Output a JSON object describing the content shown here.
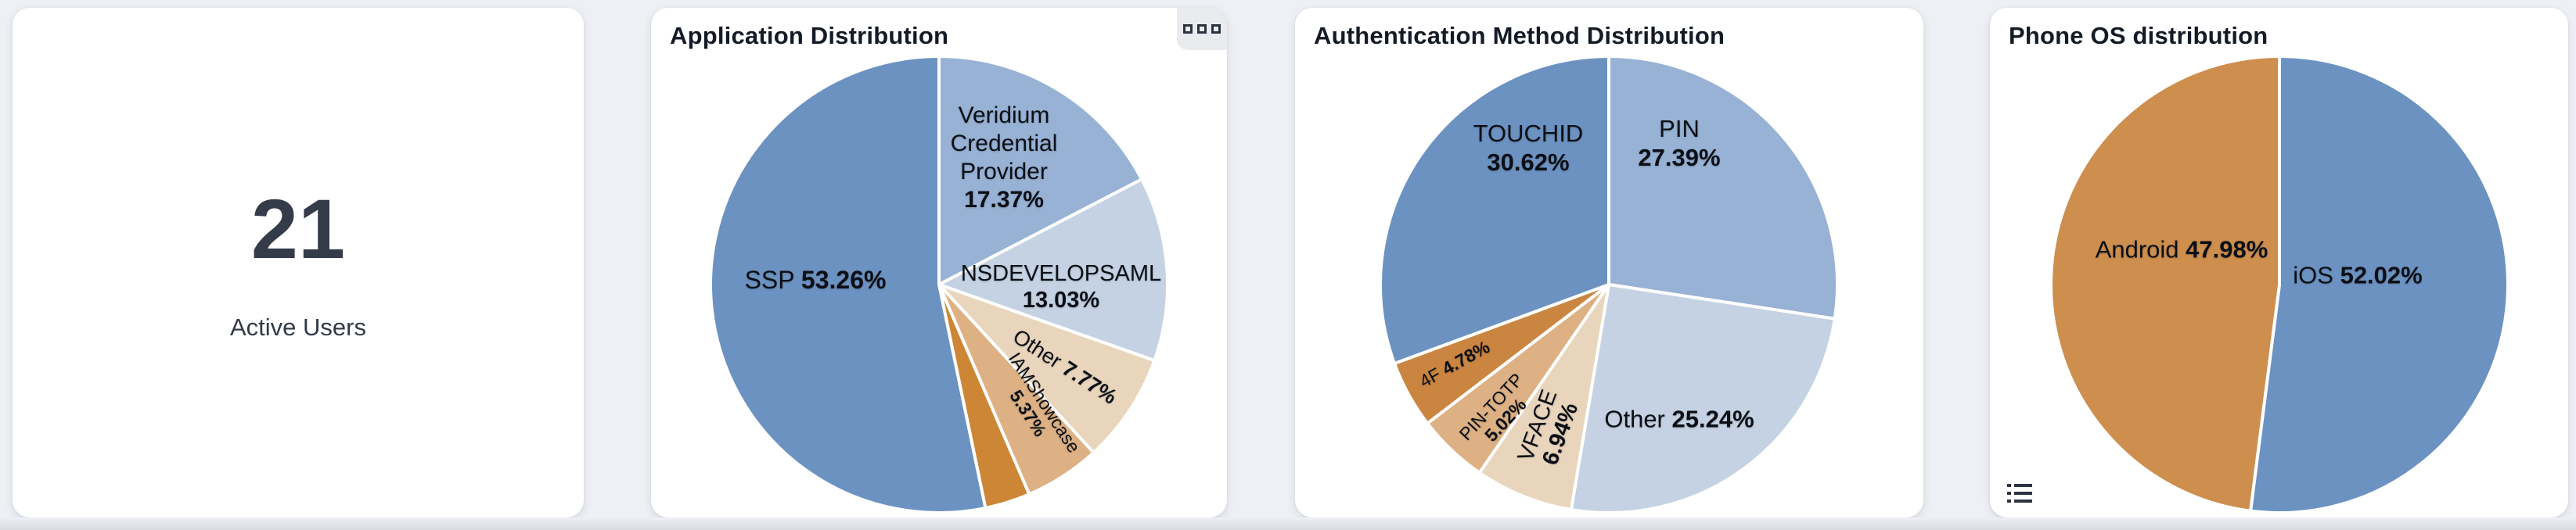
{
  "page": {
    "background_color": "#eef0f5"
  },
  "cards": {
    "active_users": {
      "value": "21",
      "label": "Active Users"
    },
    "application": {
      "title": "Application Distribution",
      "menu_icon": "panel-squares-icon"
    },
    "authentication": {
      "title": "Authentication Method Distribution"
    },
    "phone_os": {
      "title": "Phone OS distribution",
      "list_icon": "legend-list-icon"
    }
  },
  "chart_data": [
    {
      "type": "pie",
      "title": "Application Distribution",
      "direction": "clockwise",
      "start_angle_deg": 0,
      "legend": false,
      "labels_inside": true,
      "center": [
        368,
        354
      ],
      "radius": 292,
      "stroke": {
        "color": "#ffffff",
        "width": 4
      },
      "slices": [
        {
          "name": "Veridium Credential Provider",
          "value": 17.37,
          "color": "#97b2d4",
          "label_lines": [
            "Veridium",
            "Credential",
            "Provider",
            "**17.37%**"
          ],
          "label_offset": [
            83,
            -162
          ],
          "rotation": 0,
          "font_size": 30,
          "line_height": 36
        },
        {
          "name": "NSDEVELOPSAML",
          "value": 13.03,
          "color": "#c4d2e3",
          "label_lines": [
            "NSDEVELOPSAML",
            "**13.03%**"
          ],
          "label_offset": [
            156,
            3
          ],
          "rotation": 0,
          "font_size": 29,
          "line_height": 34
        },
        {
          "name": "Other",
          "value": 7.77,
          "color": "#e8d5bc",
          "label_lines": [
            "Other **7.77%**"
          ],
          "label_offset": [
            161,
            105
          ],
          "rotation": 33,
          "font_size": 27,
          "line_height": 30
        },
        {
          "name": "IAMShowcase",
          "value": 5.37,
          "color": "#ddb183",
          "label_lines": [
            "IAMShowcase",
            "**5.37%**"
          ],
          "label_offset": [
            124,
            158
          ],
          "rotation": 57,
          "font_size": 23,
          "line_height": 25
        },
        {
          "name": "",
          "value": 3.2,
          "color": "#cc8636",
          "label_lines": null,
          "label_offset": null,
          "rotation": 0,
          "font_size": 0,
          "line_height": 0
        },
        {
          "name": "SSP",
          "value": 53.26,
          "color": "#6c92c1",
          "label_lines": [
            "SSP **53.26%**"
          ],
          "label_offset": [
            -158,
            -6
          ],
          "rotation": 0,
          "font_size": 32,
          "line_height": 36
        }
      ]
    },
    {
      "type": "pie",
      "title": "Authentication Method Distribution",
      "direction": "clockwise",
      "start_angle_deg": 0,
      "legend": false,
      "labels_inside": true,
      "center": [
        401,
        354
      ],
      "radius": 292,
      "stroke": {
        "color": "#ffffff",
        "width": 4
      },
      "slices": [
        {
          "name": "PIN",
          "value": 27.39,
          "color": "#97b2d4",
          "label_lines": [
            "PIN",
            "**27.39%**"
          ],
          "label_offset": [
            90,
            -181
          ],
          "rotation": 0,
          "font_size": 31,
          "line_height": 37
        },
        {
          "name": "Other",
          "value": 25.24,
          "color": "#c4d2e3",
          "label_lines": [
            "Other **25.24%**"
          ],
          "label_offset": [
            90,
            172
          ],
          "rotation": 0,
          "font_size": 31,
          "line_height": 35
        },
        {
          "name": "VFACE",
          "value": 6.94,
          "color": "#e8d5bc",
          "label_lines": [
            "VFACE",
            "**6.94%**"
          ],
          "label_offset": [
            -76,
            186
          ],
          "rotation": -70,
          "font_size": 29,
          "line_height": 31
        },
        {
          "name": "PIN-TOTP",
          "value": 5.02,
          "color": "#ddb183",
          "label_lines": [
            "PIN-TOTP",
            "**5.02%**"
          ],
          "label_offset": [
            -141,
            165
          ],
          "rotation": -47,
          "font_size": 23,
          "line_height": 25
        },
        {
          "name": "4F",
          "value": 4.78,
          "color": "#ca8541",
          "label_lines": [
            "4F **4.78%**"
          ],
          "label_offset": [
            -197,
            102
          ],
          "rotation": -29,
          "font_size": 23,
          "line_height": 25
        },
        {
          "name": "TOUCHID",
          "value": 30.62,
          "color": "#6c92c1",
          "label_lines": [
            "TOUCHID",
            "**30.62%**"
          ],
          "label_offset": [
            -103,
            -175
          ],
          "rotation": 0,
          "font_size": 31,
          "line_height": 37
        }
      ]
    },
    {
      "type": "pie",
      "title": "Phone OS distribution",
      "direction": "clockwise",
      "start_angle_deg": 0,
      "legend": false,
      "labels_inside": true,
      "center": [
        370,
        354
      ],
      "radius": 292,
      "stroke": {
        "color": "#ffffff",
        "width": 4
      },
      "slices": [
        {
          "name": "iOS",
          "value": 52.02,
          "color": "#6c92c1",
          "label_lines": [
            "iOS **52.02%**"
          ],
          "label_offset": [
            100,
            -12
          ],
          "rotation": 0,
          "font_size": 31,
          "line_height": 35
        },
        {
          "name": "Android",
          "value": 47.98,
          "color": "#cd8e4e",
          "label_lines": [
            "Android **47.98%**"
          ],
          "label_offset": [
            -125,
            -45
          ],
          "rotation": 0,
          "font_size": 31,
          "line_height": 35
        }
      ]
    }
  ]
}
